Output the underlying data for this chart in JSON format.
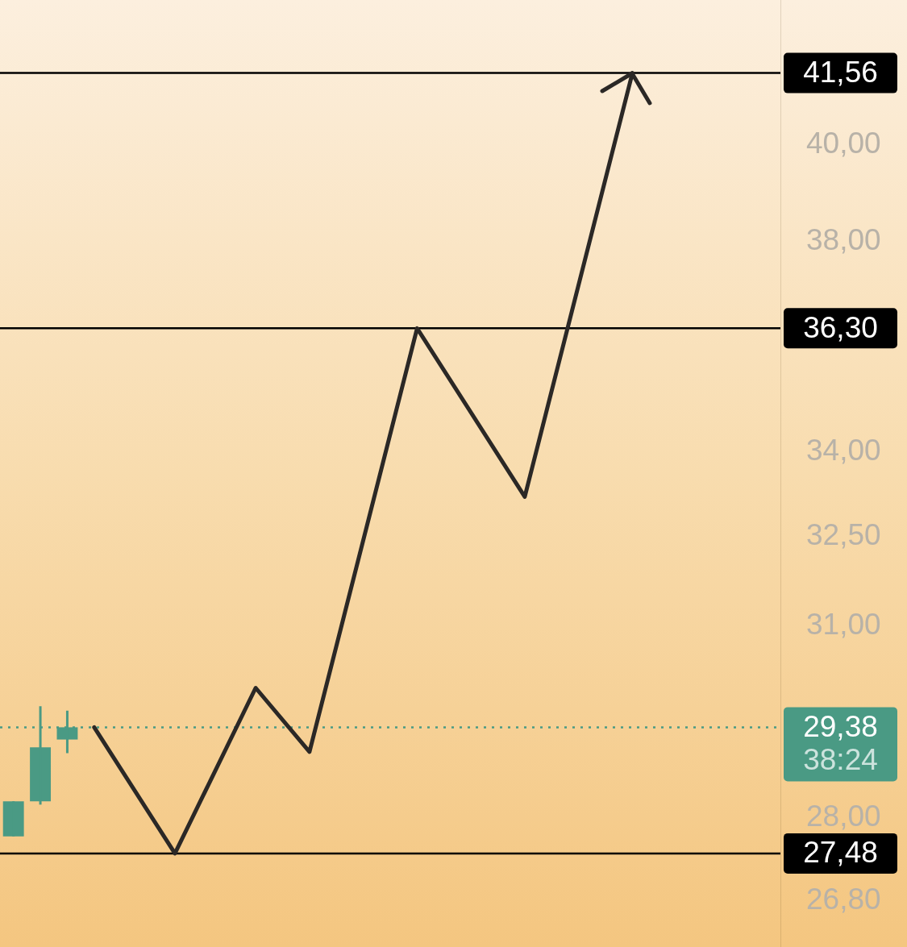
{
  "chart_data": {
    "type": "candlestick",
    "categories": [
      null,
      null,
      null,
      null,
      null,
      null,
      null,
      null,
      null,
      null,
      null,
      null,
      null,
      null,
      null,
      null,
      null,
      null,
      null,
      null,
      null,
      null,
      null,
      null,
      null,
      null,
      null,
      null,
      null
    ],
    "ohlc": [
      [
        27.73,
        28.25,
        27.73,
        28.25
      ],
      [
        28.25,
        29.71,
        28.2,
        29.07
      ],
      [
        29.19,
        29.64,
        28.98,
        29.38
      ],
      null,
      null,
      null,
      null,
      null,
      null,
      null,
      null,
      null,
      null,
      null,
      null,
      null,
      null,
      null,
      null,
      null,
      null,
      null,
      null,
      null,
      null,
      null,
      null,
      null,
      null
    ],
    "color": "#4a9a84",
    "series": [
      {
        "type": "line",
        "color": "#2b2826",
        "values": [
          null,
          null,
          null,
          29.38,
          null,
          null,
          27.48,
          null,
          null,
          30.0,
          null,
          29.0,
          null,
          null,
          null,
          36.3,
          null,
          null,
          null,
          33.2,
          null,
          null,
          null,
          41.56,
          null,
          null,
          null,
          null,
          null
        ]
      }
    ],
    "log": true,
    "ylim": [
      26.15,
      43.2
    ],
    "yticks": [
      {
        "value": 26.8,
        "label": "26,80"
      },
      {
        "value": 28,
        "label": "28,00"
      },
      {
        "value": 31,
        "label": "31,00"
      },
      {
        "value": 32.5,
        "label": "32,50"
      },
      {
        "value": 34,
        "label": "34,00"
      },
      {
        "value": 38,
        "label": "38,00"
      },
      {
        "value": 40,
        "label": "40,00"
      }
    ],
    "tick_labels": "y",
    "ref_lines": [
      {
        "axis": "y",
        "value": 41.56,
        "label": "41,56",
        "color": "#000000"
      },
      {
        "axis": "y",
        "value": 36.3,
        "label": "36,30",
        "color": "#000000"
      },
      {
        "axis": "y",
        "value": 27.48,
        "label": "27,48",
        "color": "#000000"
      },
      {
        "axis": "y",
        "value": 29.38,
        "label": "29,38",
        "color": "#4a9a84",
        "line_style": "dotted"
      }
    ],
    "annotations": [
      "38:24"
    ]
  }
}
